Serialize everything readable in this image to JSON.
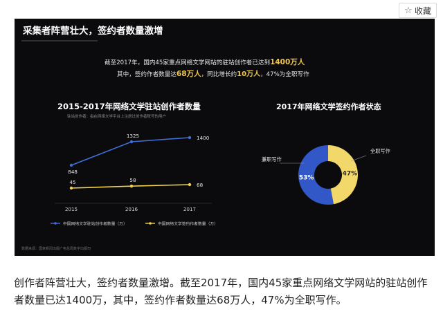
{
  "toolbar": {
    "favorite_label": "收藏",
    "favorite_icon": "star-icon"
  },
  "slide": {
    "title": "采集者阵营壮大，签约者数量激增",
    "intro_line1_prefix": "截至2017年，国内45家重点网络文学网站的驻站创作者已达到",
    "intro_line1_highlight": "1400万人",
    "intro_line2_prefix": "其中，签约作者数量达",
    "intro_line2_hl1": "68万人",
    "intro_line2_mid": "，同比增长约",
    "intro_line2_hl2": "10万人",
    "intro_line2_suffix": "，47%为全职写作",
    "footnote": "数据来源：国家新闻出版广电总局数字出版司"
  },
  "chart_data": [
    {
      "type": "line",
      "title": "2015-2017年网络文学驻站创作者数量",
      "subtitle": "驻站创作者：指在网络文学平台上注册过创作者账号的用户",
      "categories": [
        "2015",
        "2016",
        "2017"
      ],
      "series": [
        {
          "name": "中国网络文学驻站创作者数量（万）",
          "values": [
            848,
            1325,
            1400
          ],
          "color": "#3f6fd8"
        },
        {
          "name": "中国网络文学签约作者数量（万）",
          "values": [
            45,
            58,
            68
          ],
          "color": "#f3d34a"
        }
      ],
      "legend": "bottom"
    },
    {
      "type": "pie",
      "title": "2017年网络文学签约作者状态",
      "slices": [
        {
          "label": "兼职写作",
          "value": 53,
          "text": "53%",
          "color": "#3258c8"
        },
        {
          "label": "全职写作",
          "value": 47,
          "text": "47%",
          "color": "#f2d86b"
        }
      ]
    }
  ],
  "article": {
    "caption": "创作者阵营壮大，签约者数量激增。截至2017年，国内45家重点网络文学网站的驻站创作者数量已达1400万，其中，签约作者数量达68万人，47%为全职写作。"
  }
}
